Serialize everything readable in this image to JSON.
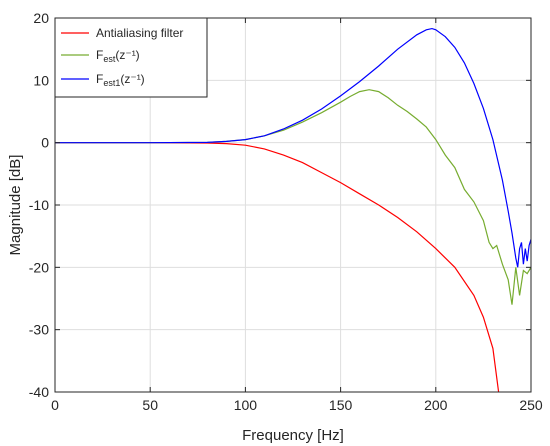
{
  "chart_data": {
    "type": "line",
    "xlabel": "Frequency [Hz]",
    "ylabel": "Magnitude [dB]",
    "xlim": [
      0,
      250
    ],
    "ylim": [
      -40,
      20
    ],
    "xticks": [
      0,
      50,
      100,
      150,
      200,
      250
    ],
    "yticks": [
      -40,
      -30,
      -20,
      -10,
      0,
      10,
      20
    ],
    "grid": true,
    "legend_position": "top-left",
    "series": [
      {
        "name": "Antialiasing filter",
        "name_main": "Antialiasing filter",
        "name_sub": "",
        "name_post": "",
        "color": "#ff0000",
        "x": [
          0,
          50,
          80,
          90,
          100,
          110,
          120,
          130,
          140,
          150,
          160,
          170,
          180,
          190,
          200,
          210,
          220,
          225,
          230,
          233
        ],
        "y": [
          0,
          0,
          -0.05,
          -0.15,
          -0.4,
          -1.0,
          -2.0,
          -3.2,
          -4.8,
          -6.4,
          -8.2,
          -10.0,
          -12.0,
          -14.3,
          -17.0,
          -20.0,
          -24.5,
          -28.0,
          -33.0,
          -40.0
        ]
      },
      {
        "name": "F_est(z^-1)",
        "name_main": "F",
        "name_sub": "est",
        "name_post": "(z⁻¹)",
        "color": "#77ac30",
        "x": [
          0,
          50,
          80,
          90,
          100,
          110,
          120,
          130,
          140,
          150,
          155,
          160,
          165,
          170,
          175,
          180,
          185,
          190,
          195,
          200,
          205,
          210,
          215,
          220,
          225,
          228,
          230,
          232,
          235,
          238,
          240,
          242,
          244,
          246,
          248,
          250
        ],
        "y": [
          0,
          0,
          0.05,
          0.2,
          0.5,
          1.1,
          2.0,
          3.3,
          4.8,
          6.5,
          7.4,
          8.2,
          8.5,
          8.2,
          7.2,
          6.0,
          5.0,
          3.8,
          2.5,
          0.5,
          -2.0,
          -4.0,
          -7.5,
          -9.5,
          -12.5,
          -16.0,
          -17.0,
          -16.5,
          -19.5,
          -22.0,
          -26.0,
          -20.0,
          -24.5,
          -20.5,
          -21.0,
          -20.0
        ]
      },
      {
        "name": "F_est1(z^-1)",
        "name_main": "F",
        "name_sub": "est1",
        "name_post": "(z⁻¹)",
        "color": "#0000ff",
        "x": [
          0,
          50,
          80,
          90,
          100,
          110,
          120,
          130,
          140,
          150,
          160,
          170,
          180,
          190,
          195,
          198,
          200,
          205,
          210,
          215,
          220,
          225,
          230,
          235,
          238,
          240,
          242,
          243,
          244,
          245,
          246,
          247,
          248,
          249,
          250
        ],
        "y": [
          0,
          0,
          0.05,
          0.2,
          0.5,
          1.1,
          2.2,
          3.6,
          5.4,
          7.5,
          9.8,
          12.3,
          15.0,
          17.3,
          18.1,
          18.3,
          18.1,
          17.0,
          15.3,
          12.8,
          9.5,
          5.5,
          0.5,
          -6.0,
          -11.0,
          -14.5,
          -18.5,
          -20.0,
          -17.0,
          -16.0,
          -19.5,
          -17.0,
          -19.0,
          -16.5,
          -15.5
        ]
      }
    ]
  }
}
